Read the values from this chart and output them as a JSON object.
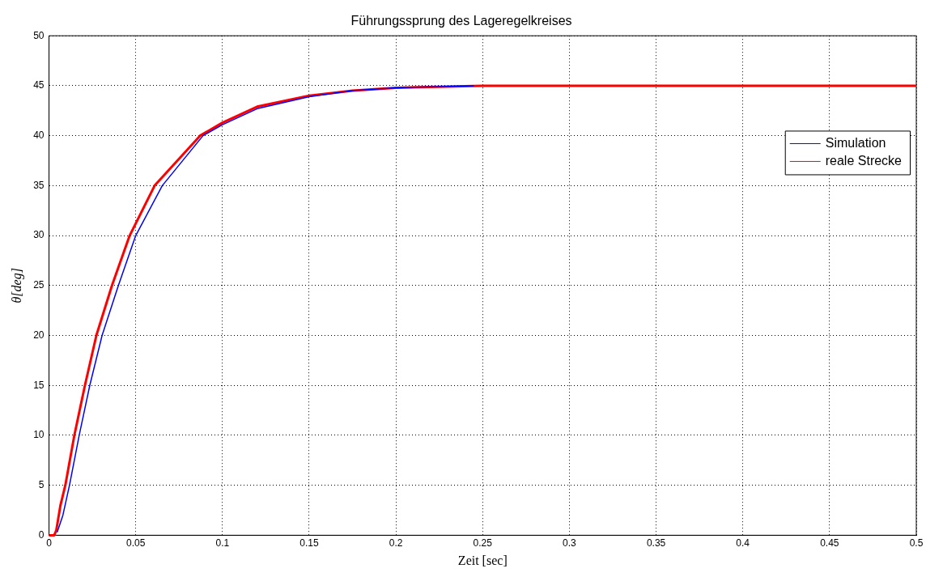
{
  "chart_data": {
    "type": "line",
    "title": "Führungssprung des Lageregelkreises",
    "xlabel": "Zeit [sec]",
    "ylabel": "θ[deg]",
    "xlim": [
      0,
      0.5
    ],
    "xticks": [
      0,
      0.05,
      0.1,
      0.15,
      0.2,
      0.25,
      0.3,
      0.35,
      0.4,
      0.45,
      0.5
    ],
    "ylim": [
      0,
      50
    ],
    "yticks": [
      0,
      5,
      10,
      15,
      20,
      25,
      30,
      35,
      40,
      45,
      50
    ],
    "grid": true,
    "legend": "right",
    "series": [
      {
        "name": "Simulation",
        "color": "#0000ff",
        "x": [
          0.0047,
          0.008,
          0.0118,
          0.0174,
          0.0235,
          0.0306,
          0.04,
          0.05,
          0.0653,
          0.0888,
          0.1,
          0.12,
          0.15,
          0.175,
          0.2,
          0.22,
          0.245
        ],
        "values": [
          0.3,
          2,
          5,
          10,
          15,
          20,
          25,
          30,
          35,
          40,
          41.1,
          42.7,
          43.9,
          44.5,
          44.8,
          44.9,
          45
        ]
      },
      {
        "name": "reale Strecke",
        "color": "#ff0000",
        "x": [
          0,
          0.003,
          0.0042,
          0.0066,
          0.0094,
          0.0146,
          0.0207,
          0.0273,
          0.0363,
          0.0465,
          0.0609,
          0.0871,
          0.1,
          0.12,
          0.15,
          0.175,
          0.2,
          0.25,
          0.3,
          0.4,
          0.5
        ],
        "values": [
          0,
          0,
          0.5,
          3,
          5,
          10,
          15,
          20,
          25,
          30,
          35,
          40,
          41.3,
          42.9,
          44,
          44.5,
          44.8,
          45,
          45,
          45,
          45
        ]
      }
    ]
  }
}
